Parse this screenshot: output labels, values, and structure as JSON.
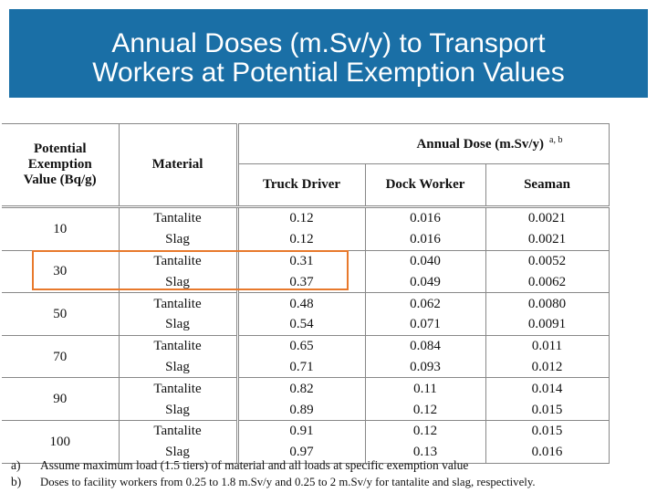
{
  "title": {
    "line1": "Annual Doses (m.Sv/y) to Transport",
    "line2": "Workers at Potential Exemption Values"
  },
  "table": {
    "col_potential": "Potential Exemption Value (Bq/g)",
    "col_potential_lines": [
      "Potential",
      "Exemption",
      "Value (Bq/g)"
    ],
    "col_material": "Material",
    "group_header": "Annual Dose (m.Sv/y)",
    "group_header_note": "a, b",
    "sub_headers": [
      "Truck Driver",
      "Dock Worker",
      "Seaman"
    ],
    "groups": [
      {
        "value": "10",
        "rows": [
          {
            "material": "Tantalite",
            "truck": "0.12",
            "dock": "0.016",
            "seaman": "0.0021"
          },
          {
            "material": "Slag",
            "truck": "0.12",
            "dock": "0.016",
            "seaman": "0.0021"
          }
        ]
      },
      {
        "value": "30",
        "rows": [
          {
            "material": "Tantalite",
            "truck": "0.31",
            "dock": "0.040",
            "seaman": "0.0052"
          },
          {
            "material": "Slag",
            "truck": "0.37",
            "dock": "0.049",
            "seaman": "0.0062"
          }
        ]
      },
      {
        "value": "50",
        "rows": [
          {
            "material": "Tantalite",
            "truck": "0.48",
            "dock": "0.062",
            "seaman": "0.0080"
          },
          {
            "material": "Slag",
            "truck": "0.54",
            "dock": "0.071",
            "seaman": "0.0091"
          }
        ]
      },
      {
        "value": "70",
        "rows": [
          {
            "material": "Tantalite",
            "truck": "0.65",
            "dock": "0.084",
            "seaman": "0.011"
          },
          {
            "material": "Slag",
            "truck": "0.71",
            "dock": "0.093",
            "seaman": "0.012"
          }
        ]
      },
      {
        "value": "90",
        "rows": [
          {
            "material": "Tantalite",
            "truck": "0.82",
            "dock": "0.11",
            "seaman": "0.014"
          },
          {
            "material": "Slag",
            "truck": "0.89",
            "dock": "0.12",
            "seaman": "0.015"
          }
        ]
      },
      {
        "value": "100",
        "rows": [
          {
            "material": "Tantalite",
            "truck": "0.91",
            "dock": "0.12",
            "seaman": "0.015"
          },
          {
            "material": "Slag",
            "truck": "0.97",
            "dock": "0.13",
            "seaman": "0.016"
          }
        ]
      }
    ]
  },
  "footnotes": [
    {
      "mark": "a)",
      "text": "Assume maximum load (1.5 tiers) of material and all loads at specific exemption value"
    },
    {
      "mark": "b)",
      "text": "Doses to facility workers from 0.25 to 1.8 m.Sv/y and 0.25 to 2 m.Sv/y for tantalite and slag, respectively."
    }
  ],
  "colors": {
    "banner": "#1a6fa6",
    "highlight": "#e8792c"
  }
}
